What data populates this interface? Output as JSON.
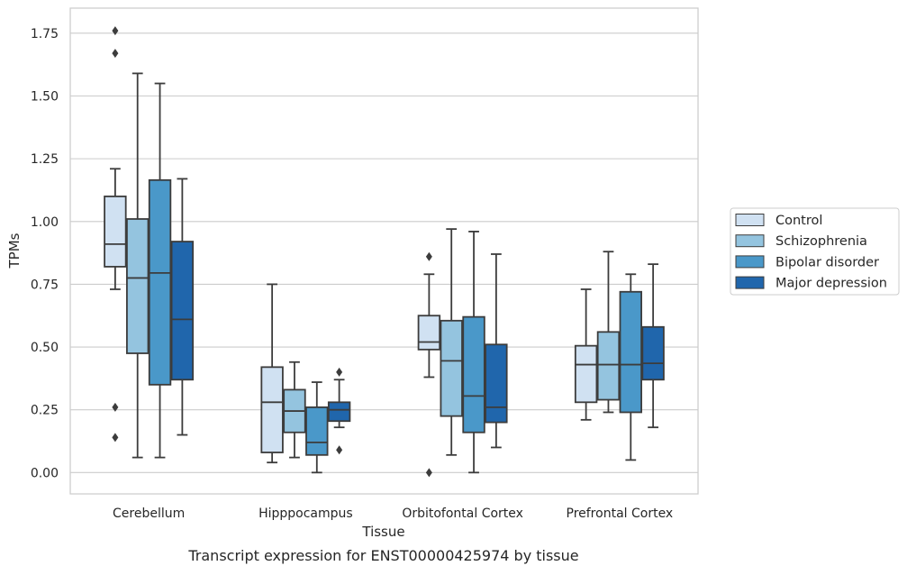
{
  "chart_data": {
    "type": "box",
    "xlabel": "Tissue",
    "ylabel": "TPMs",
    "ylim": [
      -0.085,
      1.85
    ],
    "yticks": [
      0.0,
      0.25,
      0.5,
      0.75,
      1.0,
      1.25,
      1.5,
      1.75
    ],
    "ytick_labels": [
      "0.00",
      "0.25",
      "0.50",
      "0.75",
      "1.00",
      "1.25",
      "1.50",
      "1.75"
    ],
    "grid": "horizontal",
    "legend_position": "right",
    "categories": [
      "Cerebellum",
      "Hipppocampus",
      "Orbitofontal Cortex",
      "Prefrontal Cortex"
    ],
    "series": [
      {
        "name": "Control",
        "color": "#d0e1f2",
        "boxes": [
          {
            "min": 0.73,
            "q1": 0.82,
            "median": 0.91,
            "q3": 1.1,
            "max": 1.21,
            "outliers": [
              1.76,
              1.67,
              0.26,
              0.14
            ]
          },
          {
            "min": 0.04,
            "q1": 0.08,
            "median": 0.28,
            "q3": 0.42,
            "max": 0.75,
            "outliers": []
          },
          {
            "min": 0.38,
            "q1": 0.49,
            "median": 0.52,
            "q3": 0.625,
            "max": 0.79,
            "outliers": [
              0.86,
              0.0
            ]
          },
          {
            "min": 0.21,
            "q1": 0.28,
            "median": 0.43,
            "q3": 0.505,
            "max": 0.73,
            "outliers": []
          }
        ]
      },
      {
        "name": "Schizophrenia",
        "color": "#94c4df",
        "boxes": [
          {
            "min": 0.06,
            "q1": 0.475,
            "median": 0.775,
            "q3": 1.01,
            "max": 1.59,
            "outliers": []
          },
          {
            "min": 0.06,
            "q1": 0.16,
            "median": 0.245,
            "q3": 0.33,
            "max": 0.44,
            "outliers": []
          },
          {
            "min": 0.07,
            "q1": 0.225,
            "median": 0.445,
            "q3": 0.605,
            "max": 0.97,
            "outliers": []
          },
          {
            "min": 0.24,
            "q1": 0.29,
            "median": 0.43,
            "q3": 0.56,
            "max": 0.88,
            "outliers": []
          }
        ]
      },
      {
        "name": "Bipolar disorder",
        "color": "#4a98c9",
        "boxes": [
          {
            "min": 0.06,
            "q1": 0.35,
            "median": 0.795,
            "q3": 1.165,
            "max": 1.55,
            "outliers": []
          },
          {
            "min": 0.0,
            "q1": 0.07,
            "median": 0.12,
            "q3": 0.26,
            "max": 0.36,
            "outliers": []
          },
          {
            "min": 0.0,
            "q1": 0.16,
            "median": 0.305,
            "q3": 0.62,
            "max": 0.96,
            "outliers": []
          },
          {
            "min": 0.05,
            "q1": 0.24,
            "median": 0.43,
            "q3": 0.72,
            "max": 0.79,
            "outliers": []
          }
        ]
      },
      {
        "name": "Major depression",
        "color": "#2066ac",
        "boxes": [
          {
            "min": 0.15,
            "q1": 0.37,
            "median": 0.61,
            "q3": 0.92,
            "max": 1.17,
            "outliers": []
          },
          {
            "min": 0.18,
            "q1": 0.205,
            "median": 0.25,
            "q3": 0.28,
            "max": 0.37,
            "outliers": [
              0.4,
              0.09
            ]
          },
          {
            "min": 0.1,
            "q1": 0.2,
            "median": 0.26,
            "q3": 0.51,
            "max": 0.87,
            "outliers": []
          },
          {
            "min": 0.18,
            "q1": 0.37,
            "median": 0.435,
            "q3": 0.58,
            "max": 0.83,
            "outliers": []
          }
        ]
      }
    ],
    "caption": "Transcript expression for ENST00000425974 by tissue"
  }
}
